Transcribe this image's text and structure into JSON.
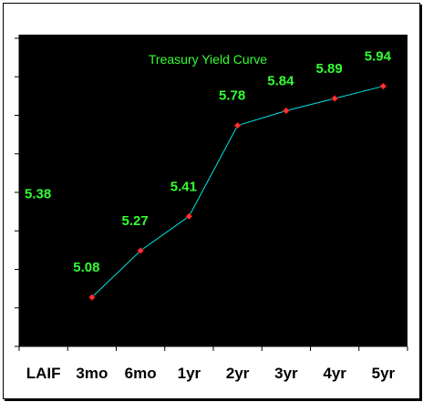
{
  "chart_data": {
    "type": "line",
    "title": "Treasury Yield Curve",
    "categories": [
      "LAIF",
      "3mo",
      "6mo",
      "1yr",
      "2yr",
      "3yr",
      "4yr",
      "5yr"
    ],
    "series": [
      {
        "values": [
          5.38,
          5.08,
          5.27,
          5.41,
          5.78,
          5.84,
          5.89,
          5.94
        ]
      }
    ],
    "line_points": [
      {
        "category": "3mo",
        "y": 5.08
      },
      {
        "category": "6mo",
        "y": 5.27
      },
      {
        "category": "1yr",
        "y": 5.41
      },
      {
        "category": "2yr",
        "y": 5.78
      },
      {
        "category": "3yr",
        "y": 5.84
      },
      {
        "category": "4yr",
        "y": 5.89
      },
      {
        "category": "5yr",
        "y": 5.94
      }
    ],
    "data_labels": [
      "5.38",
      "5.08",
      "5.27",
      "5.41",
      "5.78",
      "5.84",
      "5.89",
      "5.94"
    ],
    "ylim": [
      4.88,
      6.15
    ],
    "grid": false,
    "colors": {
      "background": "#000000",
      "line": "#00e5e5",
      "marker": "#ff3333",
      "labels": "#33ff33"
    }
  }
}
